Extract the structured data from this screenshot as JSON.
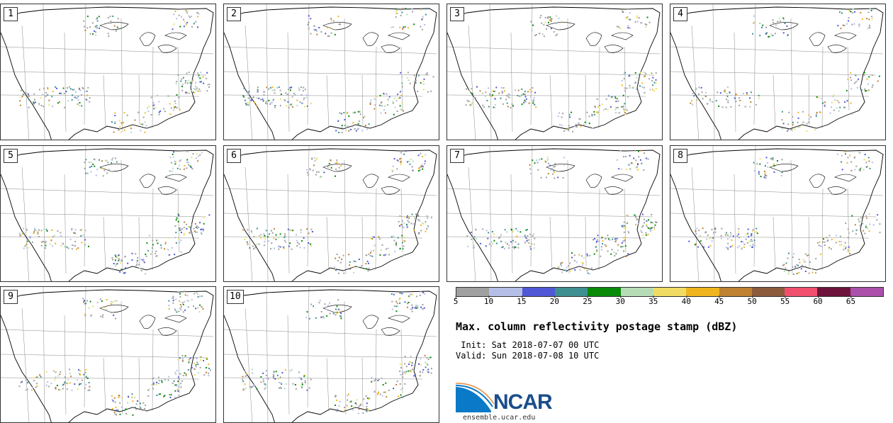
{
  "panels": [
    {
      "label": "1",
      "seed": 11
    },
    {
      "label": "2",
      "seed": 23
    },
    {
      "label": "3",
      "seed": 37
    },
    {
      "label": "4",
      "seed": 41
    },
    {
      "label": "5",
      "seed": 53
    },
    {
      "label": "6",
      "seed": 67
    },
    {
      "label": "7",
      "seed": 71
    },
    {
      "label": "8",
      "seed": 89
    },
    {
      "label": "9",
      "seed": 97
    },
    {
      "label": "10",
      "seed": 103
    }
  ],
  "colorbar": {
    "ticks": [
      "5",
      "10",
      "15",
      "20",
      "25",
      "30",
      "35",
      "40",
      "45",
      "50",
      "55",
      "60",
      "65"
    ],
    "colors": [
      "#a0a0a0",
      "#b4bee6",
      "#5058d6",
      "#3e9090",
      "#088a08",
      "#b6dcb6",
      "#f0dc64",
      "#f0b41e",
      "#be8232",
      "#8c5a3c",
      "#f0506e",
      "#6e143c",
      "#aa50aa"
    ]
  },
  "title": "Max. column reflectivity postage stamp (dBZ)",
  "init_text": " Init: Sat 2018-07-07 00 UTC",
  "valid_text": "Valid: Sun 2018-07-08 10 UTC",
  "logo": {
    "text": "NCAR",
    "url": "ensemble.ucar.edu",
    "color": "#1a4e8a",
    "accent": "#0a7ac8"
  }
}
